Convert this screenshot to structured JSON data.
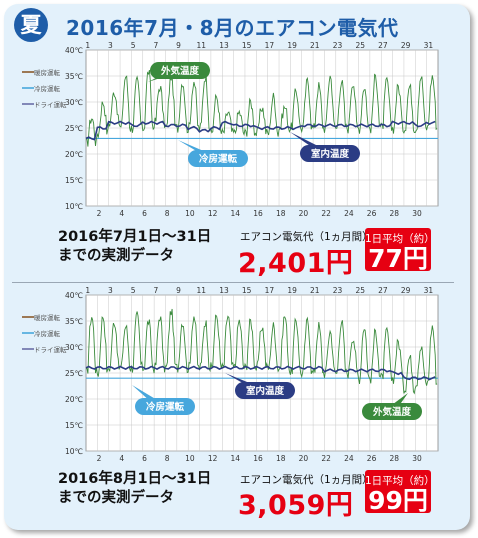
{
  "header": {
    "badge": "夏",
    "title": "2016年7月・8月のエアコン電気代"
  },
  "colors": {
    "outdoor": "#3a8a3c",
    "indoor": "#2b3c84",
    "cooling": "#47a7dd",
    "red": "#e60012",
    "blue": "#1e5da8"
  },
  "chart_data": [
    {
      "type": "line",
      "ylim": [
        10,
        40
      ],
      "y_ticks": [
        "10℃",
        "15℃",
        "20℃",
        "25℃",
        "30℃",
        "35℃",
        "40℃"
      ],
      "x_top_ticks": [
        "1",
        "3",
        "5",
        "7",
        "9",
        "11",
        "13",
        "15",
        "17",
        "19",
        "21",
        "23",
        "25",
        "27",
        "29",
        "31"
      ],
      "x_bottom_ticks": [
        "2",
        "4",
        "6",
        "8",
        "10",
        "12",
        "14",
        "16",
        "18",
        "20",
        "22",
        "24",
        "26",
        "28",
        "30"
      ],
      "legend": [
        "暖房運転",
        "冷房運転",
        "ドライ運転"
      ],
      "callouts": {
        "outdoor": "外気温度",
        "cooling": "冷房運転",
        "indoor": "室内温度"
      },
      "series": [
        {
          "name": "外気温度",
          "high": [
            27,
            30,
            32,
            35,
            34,
            36,
            33,
            35,
            34,
            34,
            35,
            31,
            28,
            28,
            30,
            29,
            31,
            29,
            32,
            34,
            33,
            35,
            34,
            34,
            33,
            35,
            34,
            33,
            33,
            35,
            35
          ],
          "low": [
            22,
            24,
            26,
            25,
            25,
            25,
            26,
            25,
            25,
            25,
            25,
            24,
            24,
            24,
            24,
            24,
            24,
            25,
            25,
            25,
            25,
            25,
            25,
            25,
            25,
            25,
            25,
            25,
            25,
            25,
            25
          ]
        },
        {
          "name": "室内温度",
          "values": [
            23,
            25,
            26,
            26,
            25.5,
            26,
            26,
            25.5,
            25.5,
            25,
            24.5,
            25,
            26,
            25.5,
            25.5,
            25,
            25,
            25,
            25,
            25.5,
            25.5,
            25.5,
            25.5,
            25.5,
            25.5,
            25.5,
            25.5,
            26,
            26,
            25.5,
            26
          ]
        },
        {
          "name": "冷房運転",
          "values": [
            23,
            23,
            23,
            23,
            23,
            23,
            23,
            23,
            23,
            23,
            23,
            23,
            23,
            23,
            23,
            23,
            23,
            23,
            23,
            23,
            23,
            23,
            23,
            23,
            23,
            23,
            23,
            23,
            23,
            23,
            23
          ]
        }
      ]
    },
    {
      "type": "line",
      "ylim": [
        10,
        40
      ],
      "y_ticks": [
        "10℃",
        "15℃",
        "20℃",
        "25℃",
        "30℃",
        "35℃",
        "40℃"
      ],
      "x_top_ticks": [
        "1",
        "3",
        "5",
        "7",
        "9",
        "11",
        "13",
        "15",
        "17",
        "19",
        "21",
        "23",
        "25",
        "27",
        "29",
        "31"
      ],
      "x_bottom_ticks": [
        "2",
        "4",
        "6",
        "8",
        "10",
        "12",
        "14",
        "16",
        "18",
        "20",
        "22",
        "24",
        "26",
        "28",
        "30"
      ],
      "legend": [
        "暖房運転",
        "冷房運転",
        "ドライ運転"
      ],
      "callouts": {
        "outdoor": "外気温度",
        "cooling": "冷房運転",
        "indoor": "室内温度"
      },
      "series": [
        {
          "name": "外気温度",
          "high": [
            36,
            36,
            35,
            34,
            36,
            35,
            36,
            37,
            35,
            36,
            35,
            36,
            36,
            35,
            35,
            34,
            34,
            36,
            35,
            35,
            34,
            33,
            35,
            32,
            34,
            33,
            33,
            31,
            28,
            30,
            34
          ],
          "low": [
            25,
            25,
            26,
            26,
            26,
            26,
            26,
            26,
            26,
            26,
            26,
            26,
            26,
            26,
            26,
            26,
            26,
            26,
            25,
            25,
            25,
            25,
            25,
            25,
            24,
            24,
            24,
            24,
            22,
            23,
            23
          ]
        },
        {
          "name": "室内温度",
          "values": [
            26,
            26,
            26,
            26,
            26,
            26,
            26,
            26,
            26,
            26,
            26,
            26,
            26,
            26,
            26,
            26,
            26,
            26,
            26,
            26,
            26,
            25.5,
            25.5,
            25.5,
            25.5,
            25.5,
            25.5,
            25,
            24,
            24,
            24
          ]
        },
        {
          "name": "冷房運転",
          "values": [
            24,
            24,
            24,
            24,
            24,
            24,
            24,
            24,
            24,
            24,
            24,
            24,
            24,
            24,
            24,
            24,
            24,
            24,
            24,
            24,
            24,
            24,
            24,
            24,
            24,
            24,
            24,
            24,
            24,
            24,
            24
          ]
        }
      ]
    }
  ],
  "summaries": [
    {
      "period_line1": "2016年7月1日～31日",
      "period_line2": "までの実測データ",
      "cost_label": "エアコン電気代（1ヵ月間）",
      "cost_value": "2,401円",
      "avg_label": "1日平均（約）",
      "avg_value": "77円"
    },
    {
      "period_line1": "2016年8月1日～31日",
      "period_line2": "までの実測データ",
      "cost_label": "エアコン電気代（1ヵ月間）",
      "cost_value": "3,059円",
      "avg_label": "1日平均（約）",
      "avg_value": "99円"
    }
  ]
}
